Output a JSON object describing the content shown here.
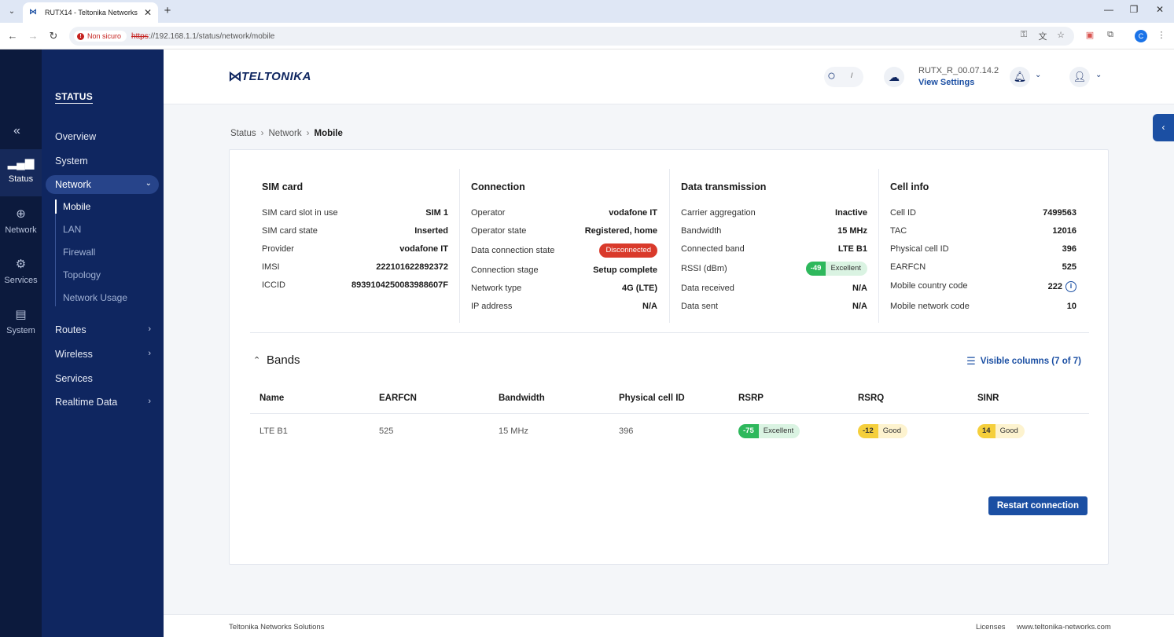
{
  "browser": {
    "tab_title": "RUTX14 - Teltonika Networks",
    "security_label": "Non sicuro",
    "url_scheme": "https",
    "url_rest": "://192.168.1.1/status/network/mobile",
    "profile_initial": "C"
  },
  "rail": {
    "items": [
      {
        "label": "Status",
        "icon": "signal-icon"
      },
      {
        "label": "Network",
        "icon": "globe-icon"
      },
      {
        "label": "Services",
        "icon": "gear-icon"
      },
      {
        "label": "System",
        "icon": "file-icon"
      }
    ]
  },
  "sidebar": {
    "title": "STATUS",
    "items": {
      "overview": "Overview",
      "system": "System",
      "network": "Network",
      "routes": "Routes",
      "wireless": "Wireless",
      "services": "Services",
      "realtime": "Realtime Data"
    },
    "network_sub": [
      "Mobile",
      "LAN",
      "Firewall",
      "Topology",
      "Network Usage"
    ]
  },
  "header": {
    "logo_text": "TELTONIKA",
    "search_shortcut": "/",
    "firmware_version": "RUTX_R_00.07.14.2",
    "firmware_link": "View Settings"
  },
  "breadcrumb": [
    "Status",
    "Network",
    "Mobile"
  ],
  "sim_card": {
    "title": "SIM card",
    "rows": [
      {
        "k": "SIM card slot in use",
        "v": "SIM 1"
      },
      {
        "k": "SIM card state",
        "v": "Inserted"
      },
      {
        "k": "Provider",
        "v": "vodafone IT"
      },
      {
        "k": "IMSI",
        "v": "222101622892372"
      },
      {
        "k": "ICCID",
        "v": "8939104250083988607F"
      }
    ]
  },
  "connection": {
    "title": "Connection",
    "rows": [
      {
        "k": "Operator",
        "v": "vodafone IT"
      },
      {
        "k": "Operator state",
        "v": "Registered, home"
      },
      {
        "k": "Data connection state",
        "v": "Disconnected"
      },
      {
        "k": "Connection stage",
        "v": "Setup complete"
      },
      {
        "k": "Network type",
        "v": "4G (LTE)"
      },
      {
        "k": "IP address",
        "v": "N/A"
      }
    ]
  },
  "data_transmission": {
    "title": "Data transmission",
    "rows": [
      {
        "k": "Carrier aggregation",
        "v": "Inactive"
      },
      {
        "k": "Bandwidth",
        "v": "15 MHz"
      },
      {
        "k": "Connected band",
        "v": "LTE B1"
      },
      {
        "k": "RSSI (dBm)",
        "v": "-49",
        "q": "Excellent"
      },
      {
        "k": "Data received",
        "v": "N/A"
      },
      {
        "k": "Data sent",
        "v": "N/A"
      }
    ]
  },
  "cell_info": {
    "title": "Cell info",
    "rows": [
      {
        "k": "Cell ID",
        "v": "7499563"
      },
      {
        "k": "TAC",
        "v": "12016"
      },
      {
        "k": "Physical cell ID",
        "v": "396"
      },
      {
        "k": "EARFCN",
        "v": "525"
      },
      {
        "k": "Mobile country code",
        "v": "222"
      },
      {
        "k": "Mobile network code",
        "v": "10"
      }
    ]
  },
  "bands": {
    "title": "Bands",
    "visible_columns": "Visible columns (7 of 7)",
    "columns": [
      "Name",
      "EARFCN",
      "Bandwidth",
      "Physical cell ID",
      "RSRP",
      "RSRQ",
      "SINR"
    ],
    "rows": [
      {
        "name": "LTE B1",
        "earfcn": "525",
        "bandwidth": "15 MHz",
        "pci": "396",
        "rsrp": "-75",
        "rsrp_q": "Excellent",
        "rsrq": "-12",
        "rsrq_q": "Good",
        "sinr": "14",
        "sinr_q": "Good"
      }
    ]
  },
  "actions": {
    "restart": "Restart connection"
  },
  "footer": {
    "company": "Teltonika Networks Solutions",
    "licenses": "Licenses",
    "website": "www.teltonika-networks.com"
  },
  "colors": {
    "sidebar": "#0f2660",
    "rail": "#0c1a3d",
    "accent": "#1b4fa3",
    "excellent": "#2eb85c",
    "good": "#f5cf3c",
    "danger": "#d93a2b"
  }
}
